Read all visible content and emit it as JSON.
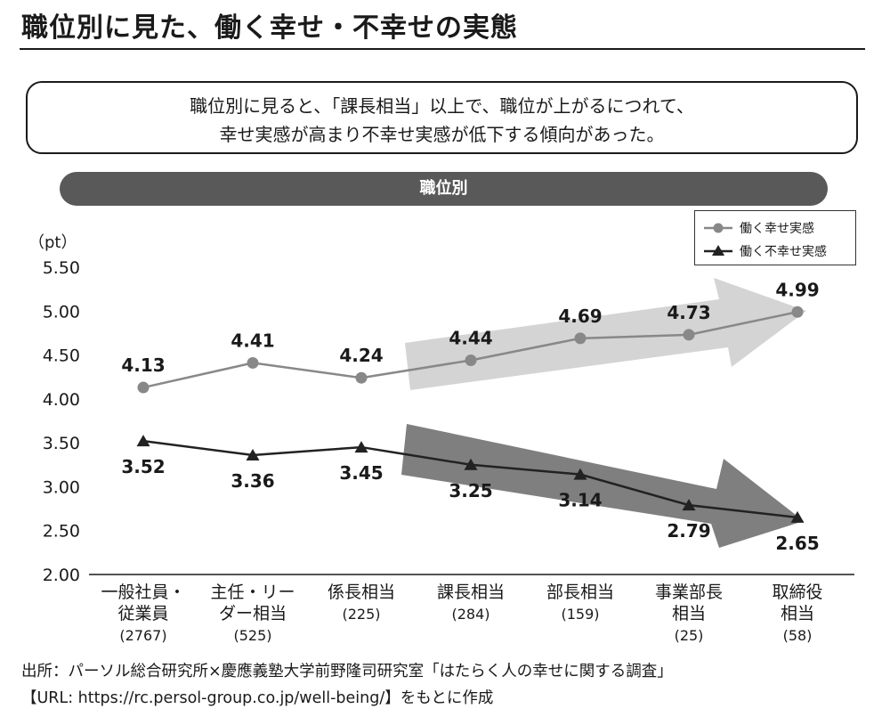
{
  "title": "職位別に見た、働く幸せ・不幸せの実態",
  "summary": {
    "line1": "職位別に見ると、「課長相当」以上で、職位が上がるにつれて、",
    "line2": "幸せ実感が高まり不幸せ実感が低下する傾向があった。"
  },
  "pill_label": "職位別",
  "source": {
    "line1": "出所：パーソル総合研究所×慶應義塾大学前野隆司研究室「はたらく人の幸せに関する調査」",
    "line2": "【URL: https://rc.persol-group.co.jp/well-being/】をもとに作成"
  },
  "chart_data": {
    "type": "line",
    "ylabel": "（pt）",
    "ylim": [
      2.0,
      5.5
    ],
    "y_ticks": [
      "5.50",
      "5.00",
      "4.50",
      "4.00",
      "3.50",
      "3.00",
      "2.50",
      "2.00"
    ],
    "y_tick_values": [
      5.5,
      5.0,
      4.5,
      4.0,
      3.5,
      3.0,
      2.5,
      2.0
    ],
    "categories": [
      {
        "lines": [
          "一般社員・",
          "従業員",
          "(2767)"
        ]
      },
      {
        "lines": [
          "主任・リー",
          "ダー相当",
          "(525)"
        ]
      },
      {
        "lines": [
          "係長相当",
          "(225)"
        ]
      },
      {
        "lines": [
          "課長相当",
          "(284)"
        ]
      },
      {
        "lines": [
          "部長相当",
          "(159)"
        ]
      },
      {
        "lines": [
          "事業部長",
          "相当",
          "(25)"
        ]
      },
      {
        "lines": [
          "取締役",
          "相当",
          "(58)"
        ]
      }
    ],
    "series": [
      {
        "name": "働く幸せ実感",
        "color": "#888888",
        "marker": "circle",
        "values": [
          4.13,
          4.41,
          4.24,
          4.44,
          4.69,
          4.73,
          4.99
        ],
        "labels": [
          "4.13",
          "4.41",
          "4.24",
          "4.44",
          "4.69",
          "4.73",
          "4.99"
        ]
      },
      {
        "name": "働く不幸せ実感",
        "color": "#222222",
        "marker": "triangle",
        "values": [
          3.52,
          3.36,
          3.45,
          3.25,
          3.14,
          2.79,
          2.65
        ],
        "labels": [
          "3.52",
          "3.36",
          "3.45",
          "3.25",
          "3.14",
          "2.79",
          "2.65"
        ]
      }
    ],
    "grid": false,
    "legend_position": "top-right",
    "trend_arrows": [
      {
        "color": "#d4d4d4",
        "direction": "up"
      },
      {
        "color": "#7f7f7f",
        "direction": "down"
      }
    ]
  }
}
